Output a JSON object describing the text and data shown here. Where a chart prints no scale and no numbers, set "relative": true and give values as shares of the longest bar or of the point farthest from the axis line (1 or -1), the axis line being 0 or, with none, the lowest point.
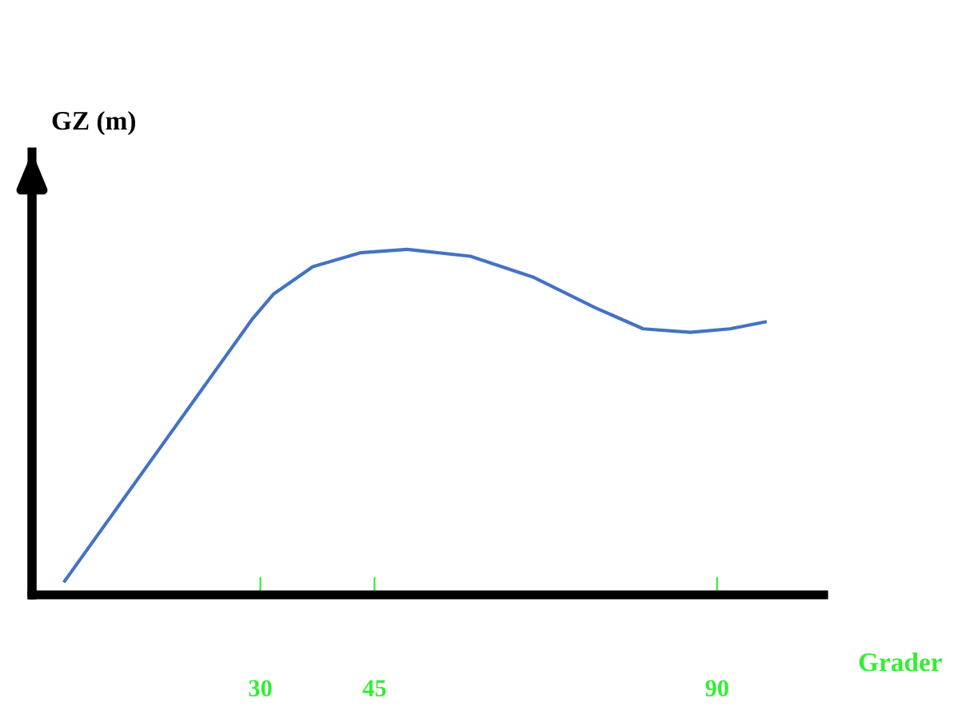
{
  "chart_data": {
    "type": "line",
    "relative": true,
    "ylabel": "GZ (m)",
    "xlabel": "Grader",
    "xlim": [
      0,
      104
    ],
    "xticks": [
      30,
      45,
      90
    ],
    "grid": false,
    "legend": false,
    "tick_labels": "x",
    "series": [
      {
        "color": "#4472c4",
        "x": [
          4.3,
          29,
          31.7,
          36.9,
          43.1,
          49.3,
          57.6,
          65.8,
          74.1,
          80.3,
          86.5,
          91.7,
          96.3
        ],
        "values": [
          0.04,
          0.8,
          0.87,
          0.95,
          0.99,
          1.0,
          0.98,
          0.92,
          0.83,
          0.77,
          0.76,
          0.77,
          0.79
        ]
      }
    ]
  }
}
